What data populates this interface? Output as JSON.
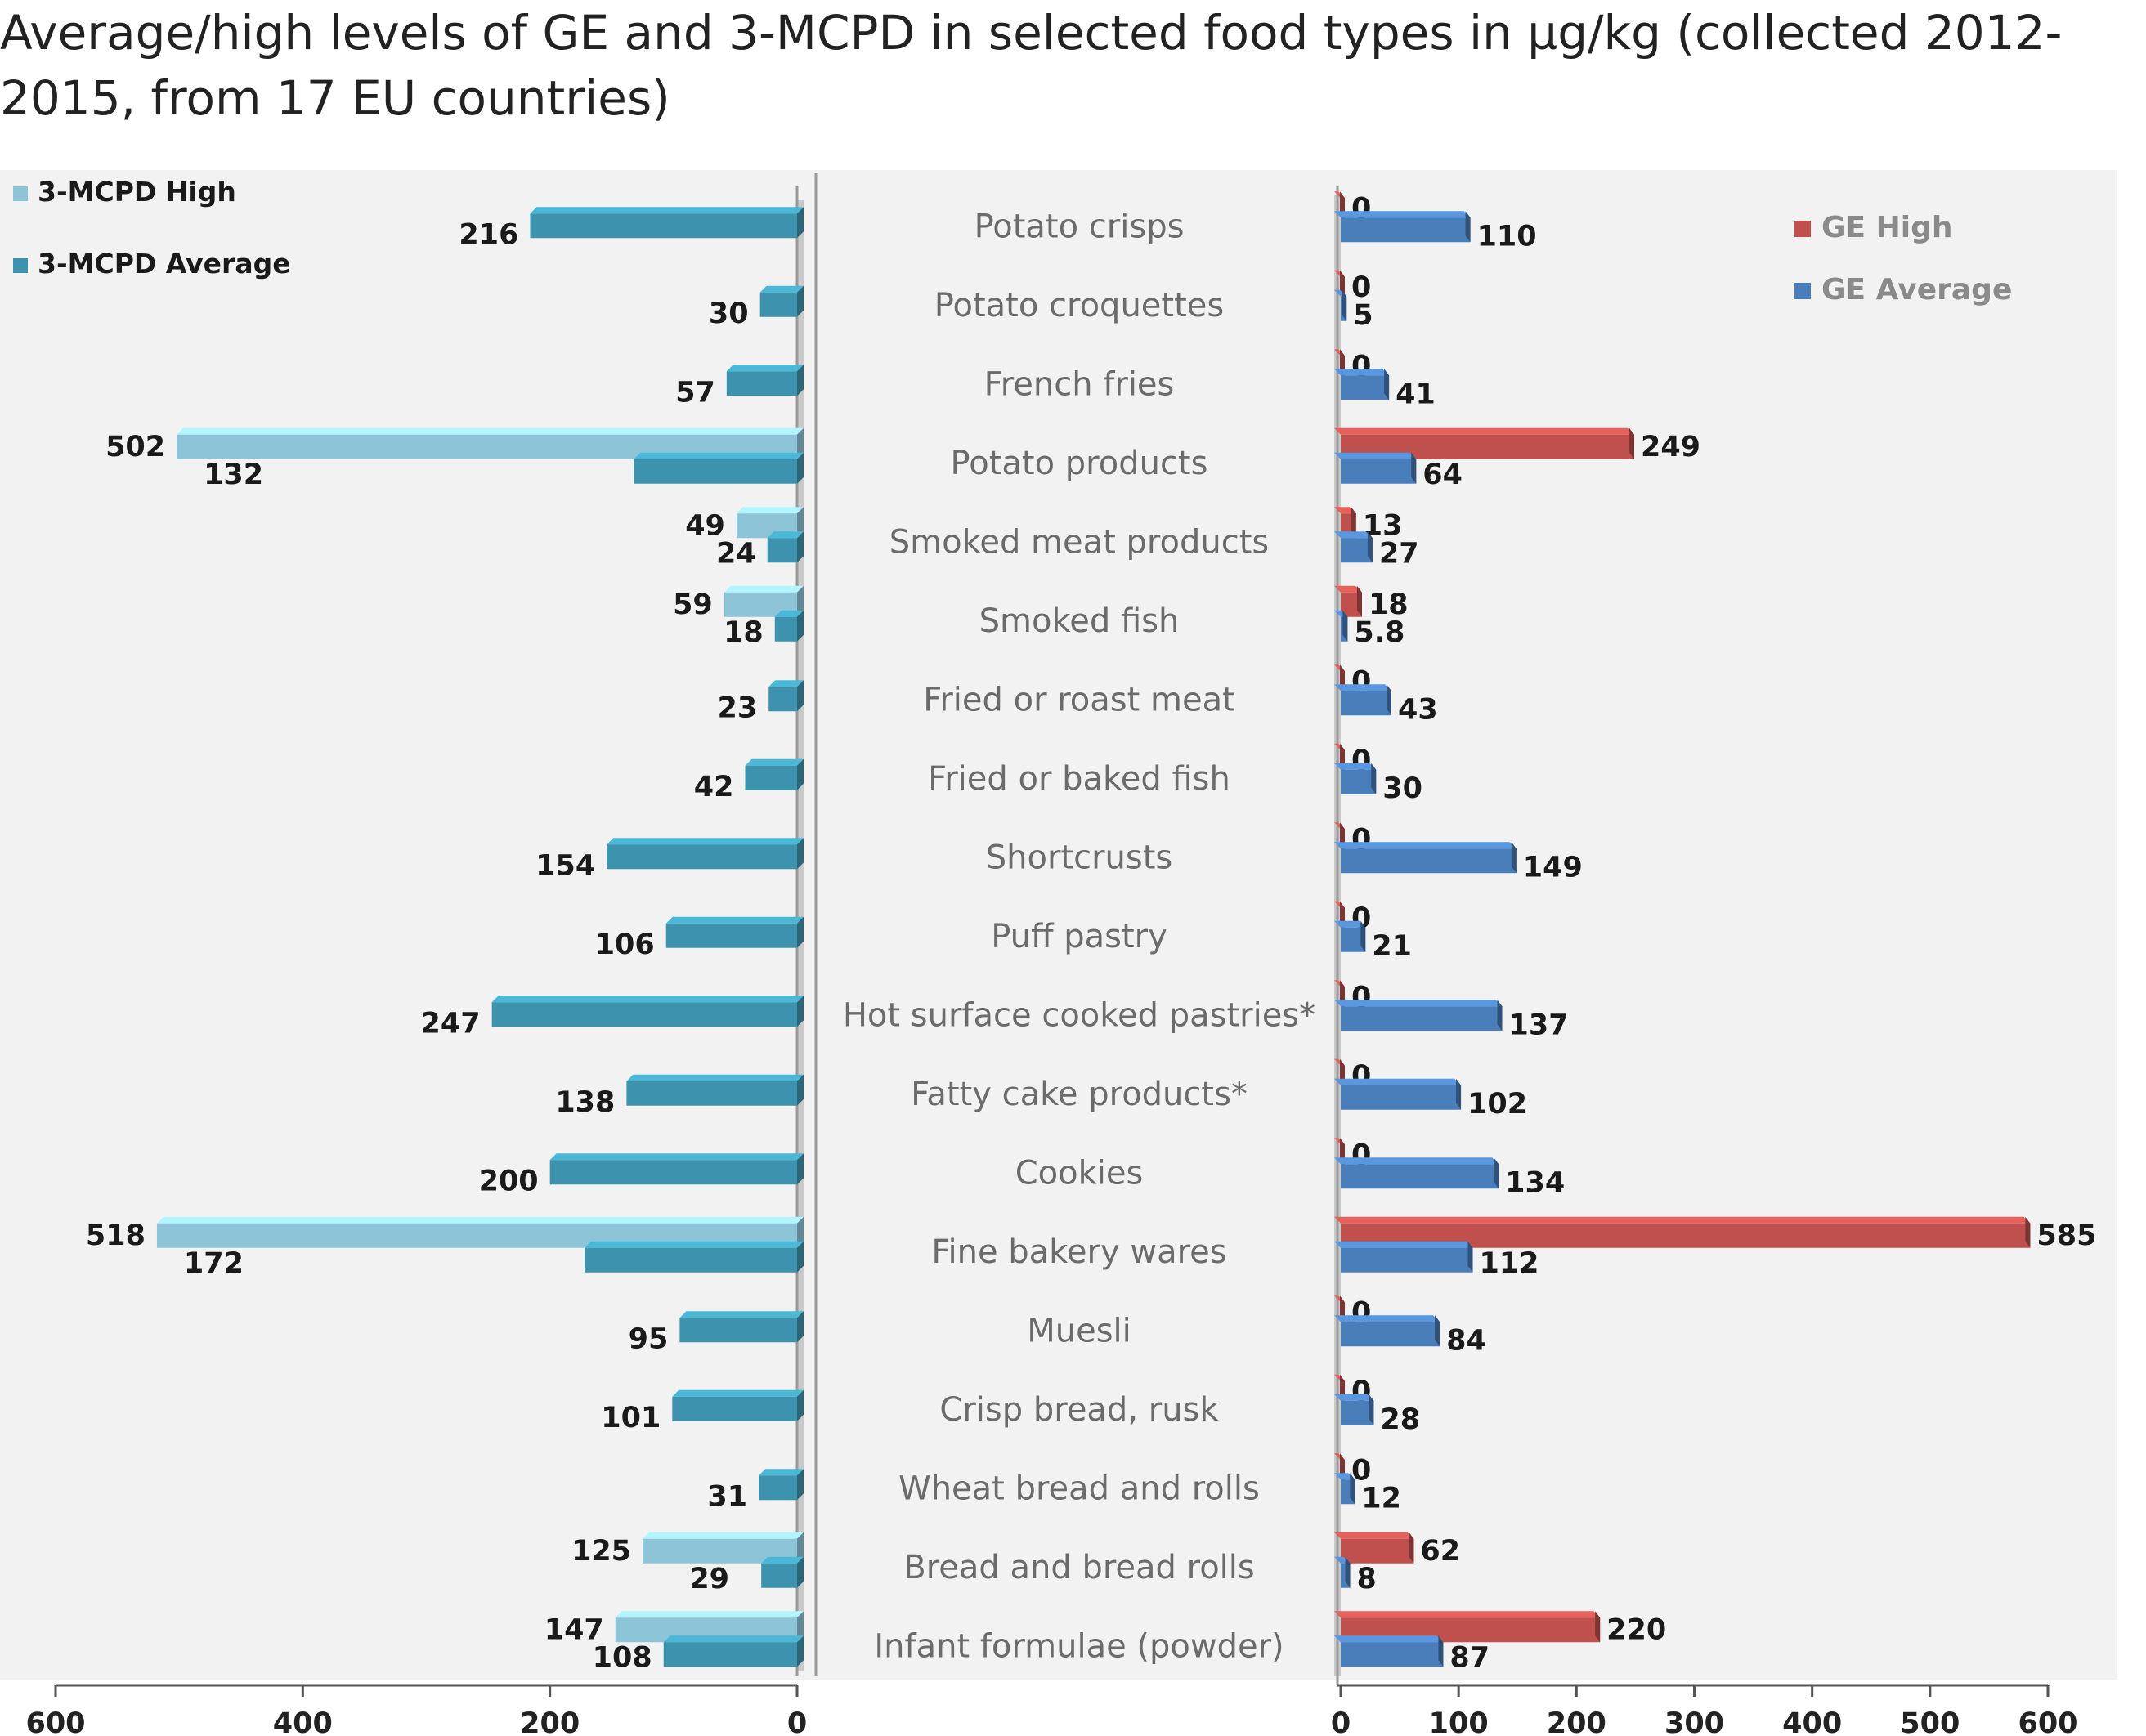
{
  "chart_data": {
    "type": "bar",
    "title": "Average/high levels of GE and 3-MCPD in selected food types in µg/kg (collected 2012-2015, from 17 EU countries)",
    "categories": [
      "Potato crisps",
      "Potato croquettes",
      "French fries",
      "Potato products",
      "Smoked meat products",
      "Smoked fish",
      "Fried or roast meat",
      "Fried or baked fish",
      "Shortcrusts",
      "Puff pastry",
      "Hot surface cooked pastries*",
      "Fatty cake products*",
      "Cookies",
      "Fine bakery wares",
      "Muesli",
      "Crisp bread, rusk",
      "Wheat bread and rolls",
      "Bread and bread rolls",
      "Infant formulae (powder)"
    ],
    "left_panel": {
      "orientation": "horizontal-reversed",
      "series": [
        {
          "name": "3-MCPD High",
          "color": "#8ec4d8",
          "values": [
            null,
            null,
            null,
            502,
            49,
            59,
            null,
            null,
            null,
            null,
            null,
            null,
            null,
            518,
            null,
            null,
            null,
            125,
            147
          ]
        },
        {
          "name": "3-MCPD Average",
          "color": "#3d93ad",
          "values": [
            216,
            30,
            57,
            132,
            24,
            18,
            23,
            42,
            154,
            106,
            247,
            138,
            200,
            172,
            95,
            101,
            31,
            29,
            108
          ]
        }
      ],
      "xlim": [
        0,
        600
      ],
      "ticks": [
        "600",
        "400",
        "200",
        "0"
      ],
      "legend": "top-left"
    },
    "right_panel": {
      "orientation": "horizontal",
      "series": [
        {
          "name": "GE High",
          "color": "#c0504d",
          "values": [
            0,
            0,
            0,
            249,
            13,
            18,
            0,
            0,
            0,
            0,
            0,
            0,
            0,
            585,
            0,
            0,
            0,
            62,
            220
          ]
        },
        {
          "name": "GE Average",
          "color": "#4a7ebb",
          "values": [
            110,
            5,
            41,
            64,
            27,
            5.8,
            43,
            30,
            149,
            21,
            137,
            102,
            134,
            112,
            84,
            28,
            12,
            8,
            87
          ]
        }
      ],
      "xlim": [
        0,
        600
      ],
      "ticks": [
        "0",
        "100",
        "200",
        "300",
        "400",
        "500",
        "600"
      ],
      "legend": "top-right"
    }
  }
}
